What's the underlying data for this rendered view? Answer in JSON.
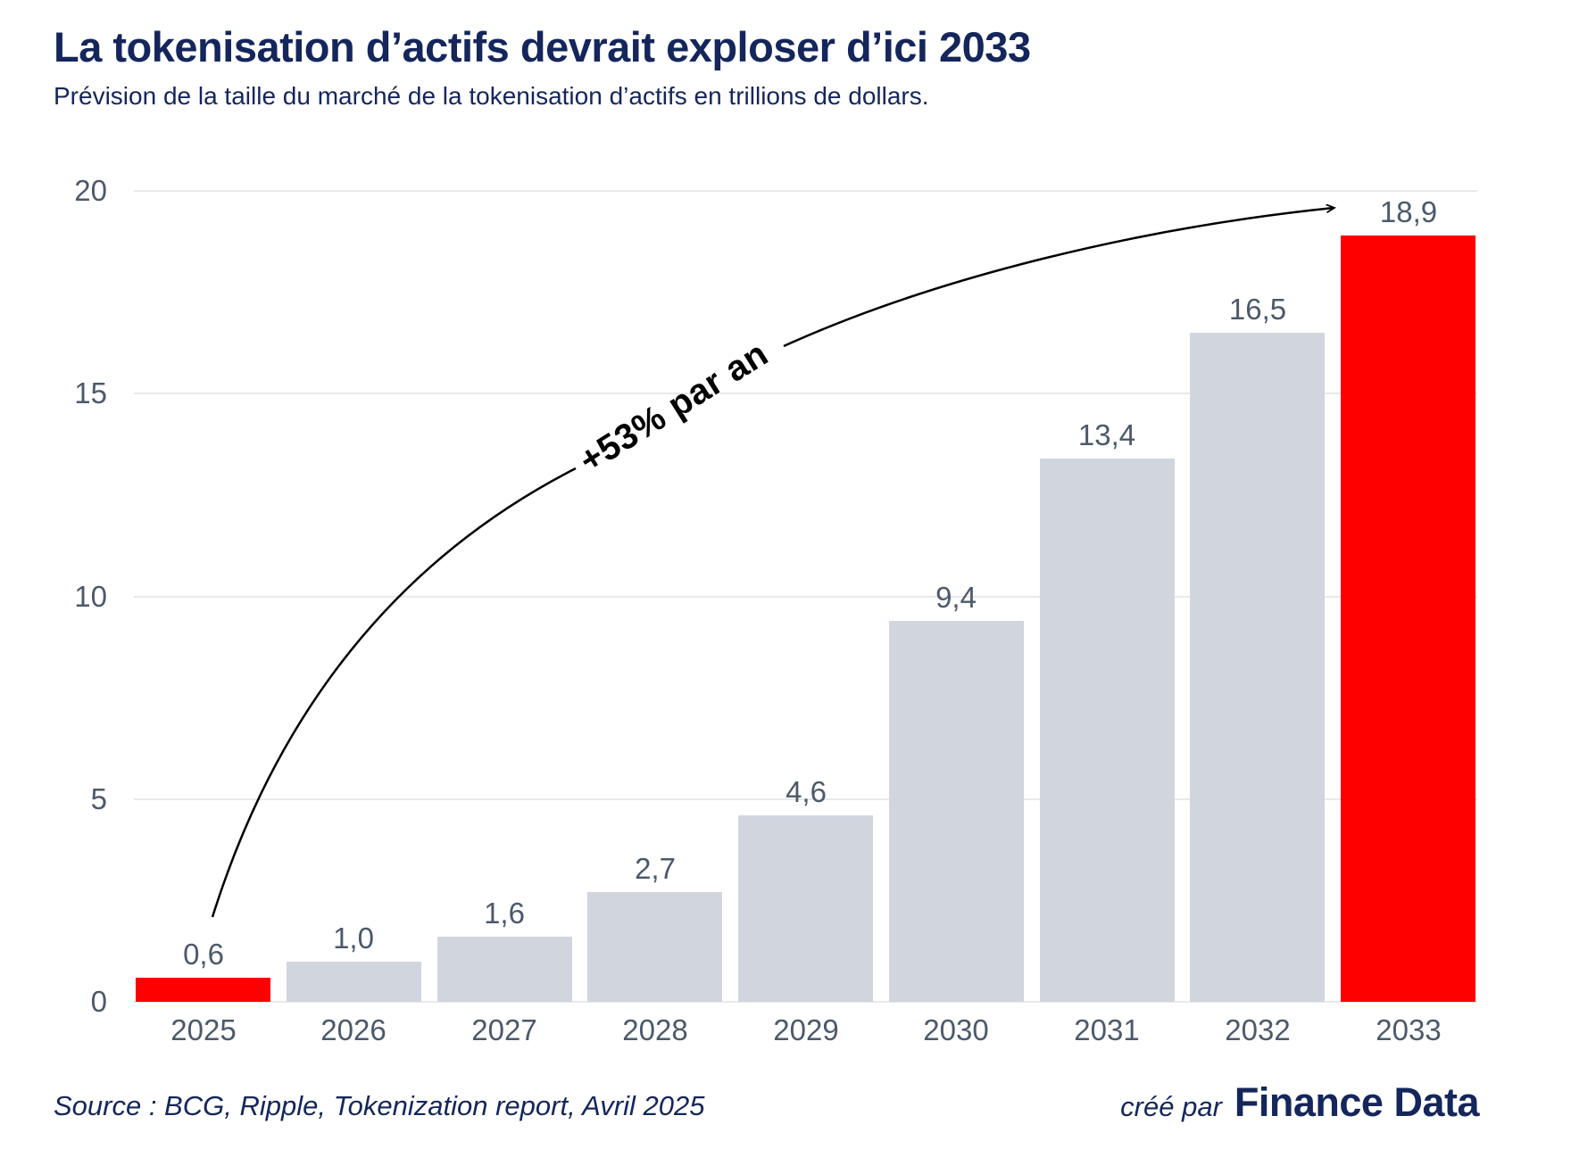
{
  "header": {
    "title": "La tokenisation d’actifs devrait exploser d’ici 2033",
    "subtitle": "Prévision de la taille du marché de la tokenisation d’actifs en trillions de dollars."
  },
  "chart_data": {
    "type": "bar",
    "title": "La tokenisation d’actifs devrait exploser d’ici 2033",
    "xlabel": "",
    "ylabel": "",
    "categories": [
      "2025",
      "2026",
      "2027",
      "2028",
      "2029",
      "2030",
      "2031",
      "2032",
      "2033"
    ],
    "values": [
      0.6,
      1.0,
      1.6,
      2.7,
      4.6,
      9.4,
      13.4,
      16.5,
      18.9
    ],
    "value_labels": [
      "0,6",
      "1,0",
      "1,6",
      "2,7",
      "4,6",
      "9,4",
      "13,4",
      "16,5",
      "18,9"
    ],
    "unit": "trillions de dollars",
    "ylim": [
      0,
      20
    ],
    "yticks": [
      0,
      5,
      10,
      15,
      20
    ],
    "ytick_labels": [
      "0",
      "5",
      "10",
      "15",
      "20"
    ],
    "grid": "horizontal",
    "legend": "none",
    "highlighted_categories": [
      "2025",
      "2033"
    ],
    "annotation": {
      "label": "+53% par an"
    }
  },
  "colors": {
    "bar_default": "#d1d5de",
    "bar_highlight": "#ff0000",
    "gridline": "#e7e9ec",
    "axis_text": "#4c596b",
    "heading_text": "#14265b",
    "annotation_text": "#000000"
  },
  "footer": {
    "source": "Source : BCG, Ripple, Tokenization report, Avril 2025",
    "credit_prefix": "créé par",
    "credit_brand": "Finance Data"
  }
}
